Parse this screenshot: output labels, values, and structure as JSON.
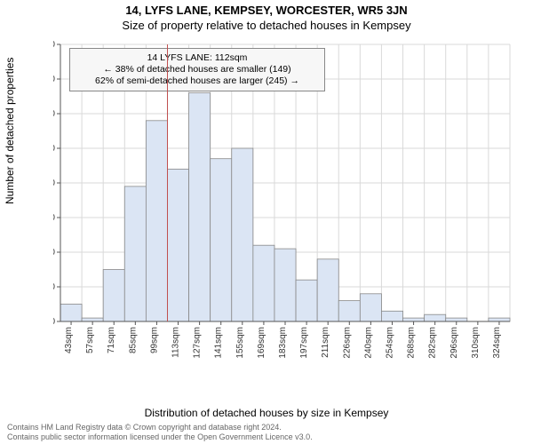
{
  "header": {
    "address": "14, LYFS LANE, KEMPSEY, WORCESTER, WR5 3JN",
    "subtitle": "Size of property relative to detached houses in Kempsey"
  },
  "axes": {
    "ylabel": "Number of detached properties",
    "xlabel": "Distribution of detached houses by size in Kempsey"
  },
  "callout": {
    "line1": "14 LYFS LANE: 112sqm",
    "line2": "← 38% of detached houses are smaller (149)",
    "line3": "62% of semi-detached houses are larger (245) →"
  },
  "footer": {
    "line1": "Contains HM Land Registry data © Crown copyright and database right 2024.",
    "line2": "Contains public sector information licensed under the Open Government Licence v3.0."
  },
  "chart": {
    "type": "histogram",
    "background_color": "#ffffff",
    "grid_color": "#d9d9d9",
    "bar_fill": "#dbe5f4",
    "bar_stroke": "#9aa8c0",
    "indicator_color": "#c05050",
    "ylim": [
      0,
      80
    ],
    "ytick_step": 10,
    "x_categories": [
      "43sqm",
      "57sqm",
      "71sqm",
      "85sqm",
      "99sqm",
      "113sqm",
      "127sqm",
      "141sqm",
      "155sqm",
      "169sqm",
      "183sqm",
      "197sqm",
      "211sqm",
      "226sqm",
      "240sqm",
      "254sqm",
      "268sqm",
      "282sqm",
      "296sqm",
      "310sqm",
      "324sqm"
    ],
    "values": [
      5,
      1,
      15,
      39,
      58,
      44,
      66,
      47,
      50,
      22,
      21,
      12,
      18,
      6,
      8,
      3,
      1,
      2,
      1,
      0,
      1
    ],
    "bar_width_ratio": 1.0,
    "indicator_category_index": 5,
    "indicator_align": "left_edge",
    "label_fontsize": 12,
    "tick_fontsize": 10
  }
}
